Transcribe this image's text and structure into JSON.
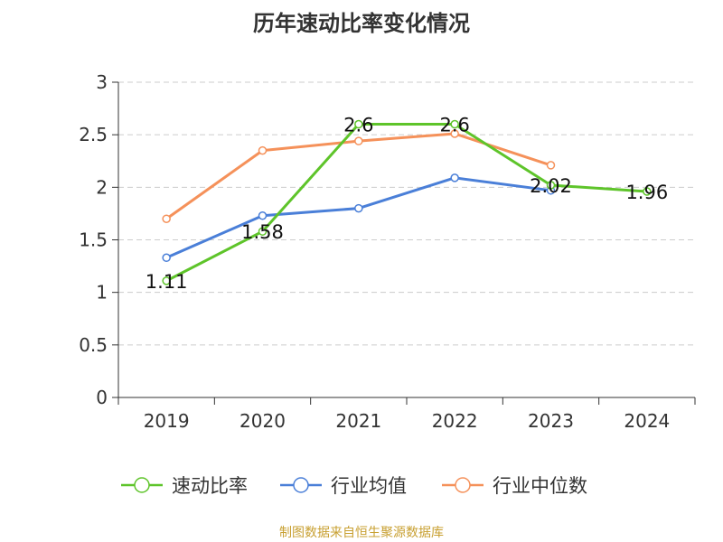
{
  "page_title": "历年速动比率变化情况",
  "source_text": "制图数据来自恒生聚源数据库",
  "chart_data": {
    "type": "line",
    "title": "历年速动比率变化情况",
    "xlabel": "",
    "ylabel": "",
    "categories": [
      "2019",
      "2020",
      "2021",
      "2022",
      "2023",
      "2024"
    ],
    "ylim": [
      0,
      3
    ],
    "yticks": [
      0,
      0.5,
      1,
      1.5,
      2,
      2.5,
      3
    ],
    "ytick_labels": [
      "0",
      "0.5",
      "1",
      "1.5",
      "2",
      "2.5",
      "3"
    ],
    "grid": true,
    "legend_position": "bottom",
    "series": [
      {
        "name": "速动比率",
        "color": "#5ec42a",
        "values": [
          1.11,
          1.58,
          2.6,
          2.6,
          2.02,
          1.96
        ],
        "labels": [
          "1.11",
          "1.58",
          "2.6",
          "2.6",
          "2.02",
          "1.96"
        ]
      },
      {
        "name": "行业均值",
        "color": "#4a7fd8",
        "values": [
          1.33,
          1.73,
          1.8,
          2.09,
          1.97,
          null
        ]
      },
      {
        "name": "行业中位数",
        "color": "#f5915a",
        "values": [
          1.7,
          2.35,
          2.44,
          2.51,
          2.21,
          null
        ]
      }
    ]
  }
}
